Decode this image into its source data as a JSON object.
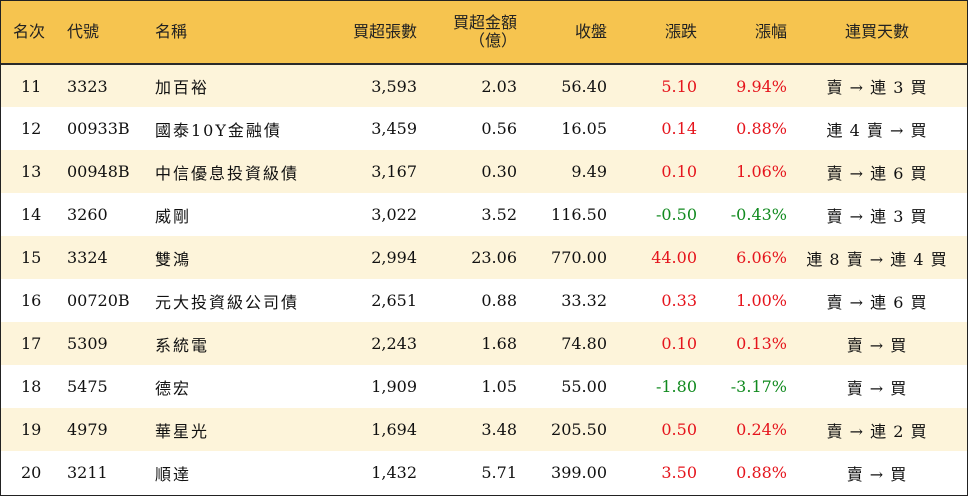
{
  "header": {
    "rank": "名次",
    "code": "代號",
    "name": "名稱",
    "net_buy_volume": "買超張數",
    "net_buy_amount_line1": "買超金額",
    "net_buy_amount_line2": "（億）",
    "close": "收盤",
    "change": "漲跌",
    "change_pct": "漲幅",
    "streak": "連買天數"
  },
  "colors": {
    "header_bg": "#f6c44f",
    "stripe_bg": "#fdf4da",
    "up": "#e5141c",
    "down": "#118a1f"
  },
  "rows": [
    {
      "rank": "11",
      "code": "3323",
      "name": "加百裕",
      "volume": "3,593",
      "amount": "2.03",
      "close": "56.40",
      "change": "5.10",
      "pct": "9.94%",
      "dir": "up",
      "streak": "賣 → 連 3 買"
    },
    {
      "rank": "12",
      "code": "00933B",
      "name": "國泰10Y金融債",
      "volume": "3,459",
      "amount": "0.56",
      "close": "16.05",
      "change": "0.14",
      "pct": "0.88%",
      "dir": "up",
      "streak": "連 4 賣 → 買"
    },
    {
      "rank": "13",
      "code": "00948B",
      "name": "中信優息投資級債",
      "volume": "3,167",
      "amount": "0.30",
      "close": "9.49",
      "change": "0.10",
      "pct": "1.06%",
      "dir": "up",
      "streak": "賣 → 連 6 買"
    },
    {
      "rank": "14",
      "code": "3260",
      "name": "威剛",
      "volume": "3,022",
      "amount": "3.52",
      "close": "116.50",
      "change": "-0.50",
      "pct": "-0.43%",
      "dir": "down",
      "streak": "賣 → 連 3 買"
    },
    {
      "rank": "15",
      "code": "3324",
      "name": "雙鴻",
      "volume": "2,994",
      "amount": "23.06",
      "close": "770.00",
      "change": "44.00",
      "pct": "6.06%",
      "dir": "up",
      "streak": "連 8 賣 → 連 4 買"
    },
    {
      "rank": "16",
      "code": "00720B",
      "name": "元大投資級公司債",
      "volume": "2,651",
      "amount": "0.88",
      "close": "33.32",
      "change": "0.33",
      "pct": "1.00%",
      "dir": "up",
      "streak": "賣 → 連 6 買"
    },
    {
      "rank": "17",
      "code": "5309",
      "name": "系統電",
      "volume": "2,243",
      "amount": "1.68",
      "close": "74.80",
      "change": "0.10",
      "pct": "0.13%",
      "dir": "up",
      "streak": "賣 → 買"
    },
    {
      "rank": "18",
      "code": "5475",
      "name": "德宏",
      "volume": "1,909",
      "amount": "1.05",
      "close": "55.00",
      "change": "-1.80",
      "pct": "-3.17%",
      "dir": "down",
      "streak": "賣 → 買"
    },
    {
      "rank": "19",
      "code": "4979",
      "name": "華星光",
      "volume": "1,694",
      "amount": "3.48",
      "close": "205.50",
      "change": "0.50",
      "pct": "0.24%",
      "dir": "up",
      "streak": "賣 → 連 2 買"
    },
    {
      "rank": "20",
      "code": "3211",
      "name": "順達",
      "volume": "1,432",
      "amount": "5.71",
      "close": "399.00",
      "change": "3.50",
      "pct": "0.88%",
      "dir": "up",
      "streak": "賣 → 買"
    }
  ]
}
